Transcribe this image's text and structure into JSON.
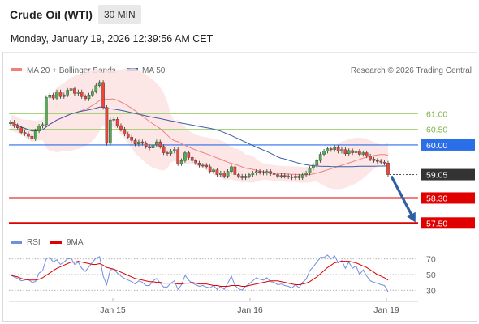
{
  "header": {
    "title": "Crude Oil (WTI)",
    "timeframe": "30 MIN"
  },
  "datetime": "Monday, January 19, 2026 12:39:56 AM CET",
  "legend": {
    "ma20": "MA 20 + Bollinger Bands",
    "ma50": "MA 50",
    "rsi": "RSI",
    "ma9": "9MA"
  },
  "copyright": "Research © 2026 Trading Central",
  "colors": {
    "ma20": "#f08080",
    "ma50": "#3a5fa8",
    "bands": "#fde2e2",
    "bull": "#4caf50",
    "bear": "#f44336",
    "pivot": "#2a6ee8",
    "support": "#e00000",
    "resistance_line": "#9ccf6a",
    "resistance_text": "#7cb342",
    "price_tag": "#333333",
    "arrow": "#2e5fa5",
    "rsi": "#6f8fe0",
    "rsi_ma": "#e00000"
  },
  "chart_data": [
    {
      "type": "candlestick",
      "title": "",
      "x_ticks": [
        "Jan 15",
        "Jan 16",
        "Jan 19"
      ],
      "ylim": [
        57.3,
        62.1
      ],
      "levels": [
        {
          "value": 61.0,
          "label": "61.00",
          "kind": "resistance"
        },
        {
          "value": 60.5,
          "label": "60.50",
          "kind": "resistance"
        },
        {
          "value": 60.0,
          "label": "60.00",
          "kind": "pivot"
        },
        {
          "value": 59.05,
          "label": "59.05",
          "kind": "last"
        },
        {
          "value": 58.3,
          "label": "58.30",
          "kind": "support"
        },
        {
          "value": 57.5,
          "label": "57.50",
          "kind": "support"
        }
      ],
      "forecast": {
        "from": 59.05,
        "to": 57.5
      },
      "close": [
        60.73,
        60.62,
        60.55,
        60.4,
        60.36,
        60.28,
        60.2,
        60.45,
        60.6,
        60.65,
        61.52,
        61.6,
        61.5,
        61.7,
        61.55,
        61.6,
        61.75,
        61.8,
        61.65,
        61.7,
        61.55,
        61.48,
        61.6,
        61.72,
        61.9,
        62.0,
        61.2,
        60.05,
        60.8,
        60.82,
        60.62,
        60.5,
        60.35,
        60.25,
        60.15,
        60.03,
        60.1,
        60.05,
        59.95,
        59.9,
        60.0,
        60.1,
        59.95,
        59.75,
        59.72,
        59.8,
        59.85,
        59.4,
        59.5,
        59.75,
        59.6,
        59.5,
        59.42,
        59.35,
        59.35,
        59.3,
        59.15,
        59.2,
        59.05,
        59.1,
        59.0,
        59.15,
        59.3,
        59.05,
        59.0,
        58.95,
        59.0,
        59.05,
        59.1,
        59.15,
        59.12,
        59.1,
        59.15,
        59.08,
        59.05,
        59.0,
        59.02,
        59.0,
        58.98,
        58.95,
        59.0,
        58.95,
        59.05,
        59.1,
        59.25,
        59.35,
        59.5,
        59.7,
        59.8,
        59.88,
        59.85,
        59.92,
        59.8,
        59.85,
        59.72,
        59.82,
        59.75,
        59.8,
        59.7,
        59.75,
        59.65,
        59.55,
        59.5,
        59.48,
        59.45,
        59.42,
        59.05
      ]
    },
    {
      "type": "line",
      "title": "RSI",
      "yticks": [
        30,
        50,
        70
      ],
      "ylim": [
        22,
        78
      ],
      "series": [
        {
          "name": "RSI",
          "values": [
            50,
            47,
            45,
            42,
            43,
            44,
            40,
            41,
            52,
            55,
            70,
            72,
            66,
            69,
            63,
            66,
            70,
            71,
            63,
            66,
            58,
            54,
            60,
            66,
            71,
            73,
            48,
            37,
            56,
            57,
            52,
            48,
            45,
            43,
            41,
            38,
            42,
            40,
            36,
            36,
            42,
            45,
            39,
            34,
            34,
            39,
            42,
            31,
            37,
            49,
            43,
            39,
            37,
            35,
            36,
            34,
            33,
            36,
            31,
            35,
            31,
            39,
            48,
            36,
            32,
            30,
            35,
            38,
            42,
            46,
            44,
            43,
            46,
            41,
            40,
            37,
            38,
            36,
            35,
            33,
            37,
            33,
            40,
            44,
            55,
            60,
            66,
            72,
            72,
            75,
            70,
            74,
            65,
            68,
            58,
            66,
            58,
            61,
            50,
            56,
            48,
            42,
            40,
            39,
            37,
            36,
            28
          ]
        },
        {
          "name": "9MA",
          "values": [
            49,
            48,
            47,
            45,
            44,
            43,
            43,
            43,
            44,
            46,
            49,
            52,
            55,
            58,
            60,
            62,
            64,
            66,
            66,
            67,
            66,
            65,
            64,
            63,
            63,
            64,
            62,
            59,
            58,
            57,
            55,
            53,
            51,
            49,
            47,
            45,
            44,
            43,
            42,
            41,
            41,
            40,
            40,
            39,
            39,
            39,
            39,
            38,
            38,
            39,
            39,
            40,
            39,
            38,
            38,
            38,
            37,
            36,
            36,
            35,
            35,
            35,
            36,
            36,
            36,
            35,
            35,
            36,
            37,
            38,
            39,
            40,
            41,
            42,
            42,
            42,
            41,
            40,
            39,
            38,
            37,
            37,
            38,
            39,
            41,
            44,
            47,
            51,
            55,
            59,
            62,
            65,
            66,
            67,
            67,
            67,
            66,
            65,
            63,
            61,
            59,
            56,
            53,
            50,
            48,
            46,
            43
          ]
        }
      ]
    }
  ]
}
